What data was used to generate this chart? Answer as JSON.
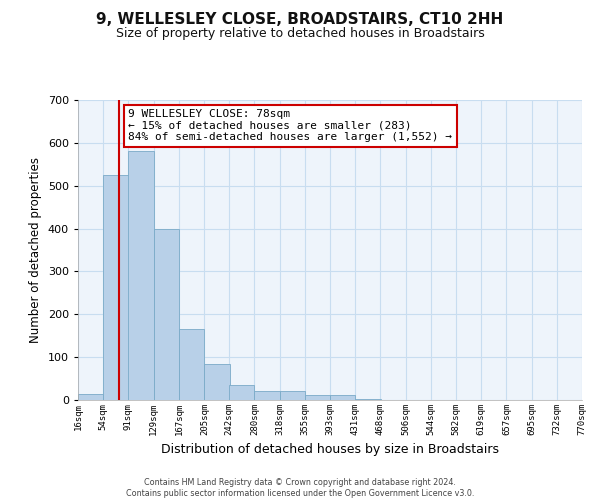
{
  "title": "9, WELLESLEY CLOSE, BROADSTAIRS, CT10 2HH",
  "subtitle": "Size of property relative to detached houses in Broadstairs",
  "xlabel": "Distribution of detached houses by size in Broadstairs",
  "ylabel": "Number of detached properties",
  "bin_labels": [
    "16sqm",
    "54sqm",
    "91sqm",
    "129sqm",
    "167sqm",
    "205sqm",
    "242sqm",
    "280sqm",
    "318sqm",
    "355sqm",
    "393sqm",
    "431sqm",
    "468sqm",
    "506sqm",
    "544sqm",
    "582sqm",
    "619sqm",
    "657sqm",
    "695sqm",
    "732sqm",
    "770sqm"
  ],
  "bin_edges": [
    16,
    54,
    91,
    129,
    167,
    205,
    242,
    280,
    318,
    355,
    393,
    431,
    468,
    506,
    544,
    582,
    619,
    657,
    695,
    732,
    770
  ],
  "bar_heights": [
    15,
    525,
    580,
    400,
    165,
    85,
    35,
    22,
    22,
    12,
    12,
    3,
    0,
    0,
    0,
    0,
    0,
    0,
    0,
    0
  ],
  "bar_color": "#b8d0e8",
  "bar_edgecolor": "#7aaac8",
  "property_line_x": 78,
  "property_line_color": "#cc0000",
  "ylim": [
    0,
    700
  ],
  "yticks": [
    0,
    100,
    200,
    300,
    400,
    500,
    600,
    700
  ],
  "annotation_text": "9 WELLESLEY CLOSE: 78sqm\n← 15% of detached houses are smaller (283)\n84% of semi-detached houses are larger (1,552) →",
  "annotation_box_color": "#ffffff",
  "annotation_box_edgecolor": "#cc0000",
  "footer_line1": "Contains HM Land Registry data © Crown copyright and database right 2024.",
  "footer_line2": "Contains public sector information licensed under the Open Government Licence v3.0.",
  "background_color": "#ffffff",
  "plot_bg_color": "#eef4fb",
  "grid_color": "#c8ddf0",
  "title_fontsize": 11,
  "subtitle_fontsize": 9,
  "axis_label_fontsize": 8.5
}
